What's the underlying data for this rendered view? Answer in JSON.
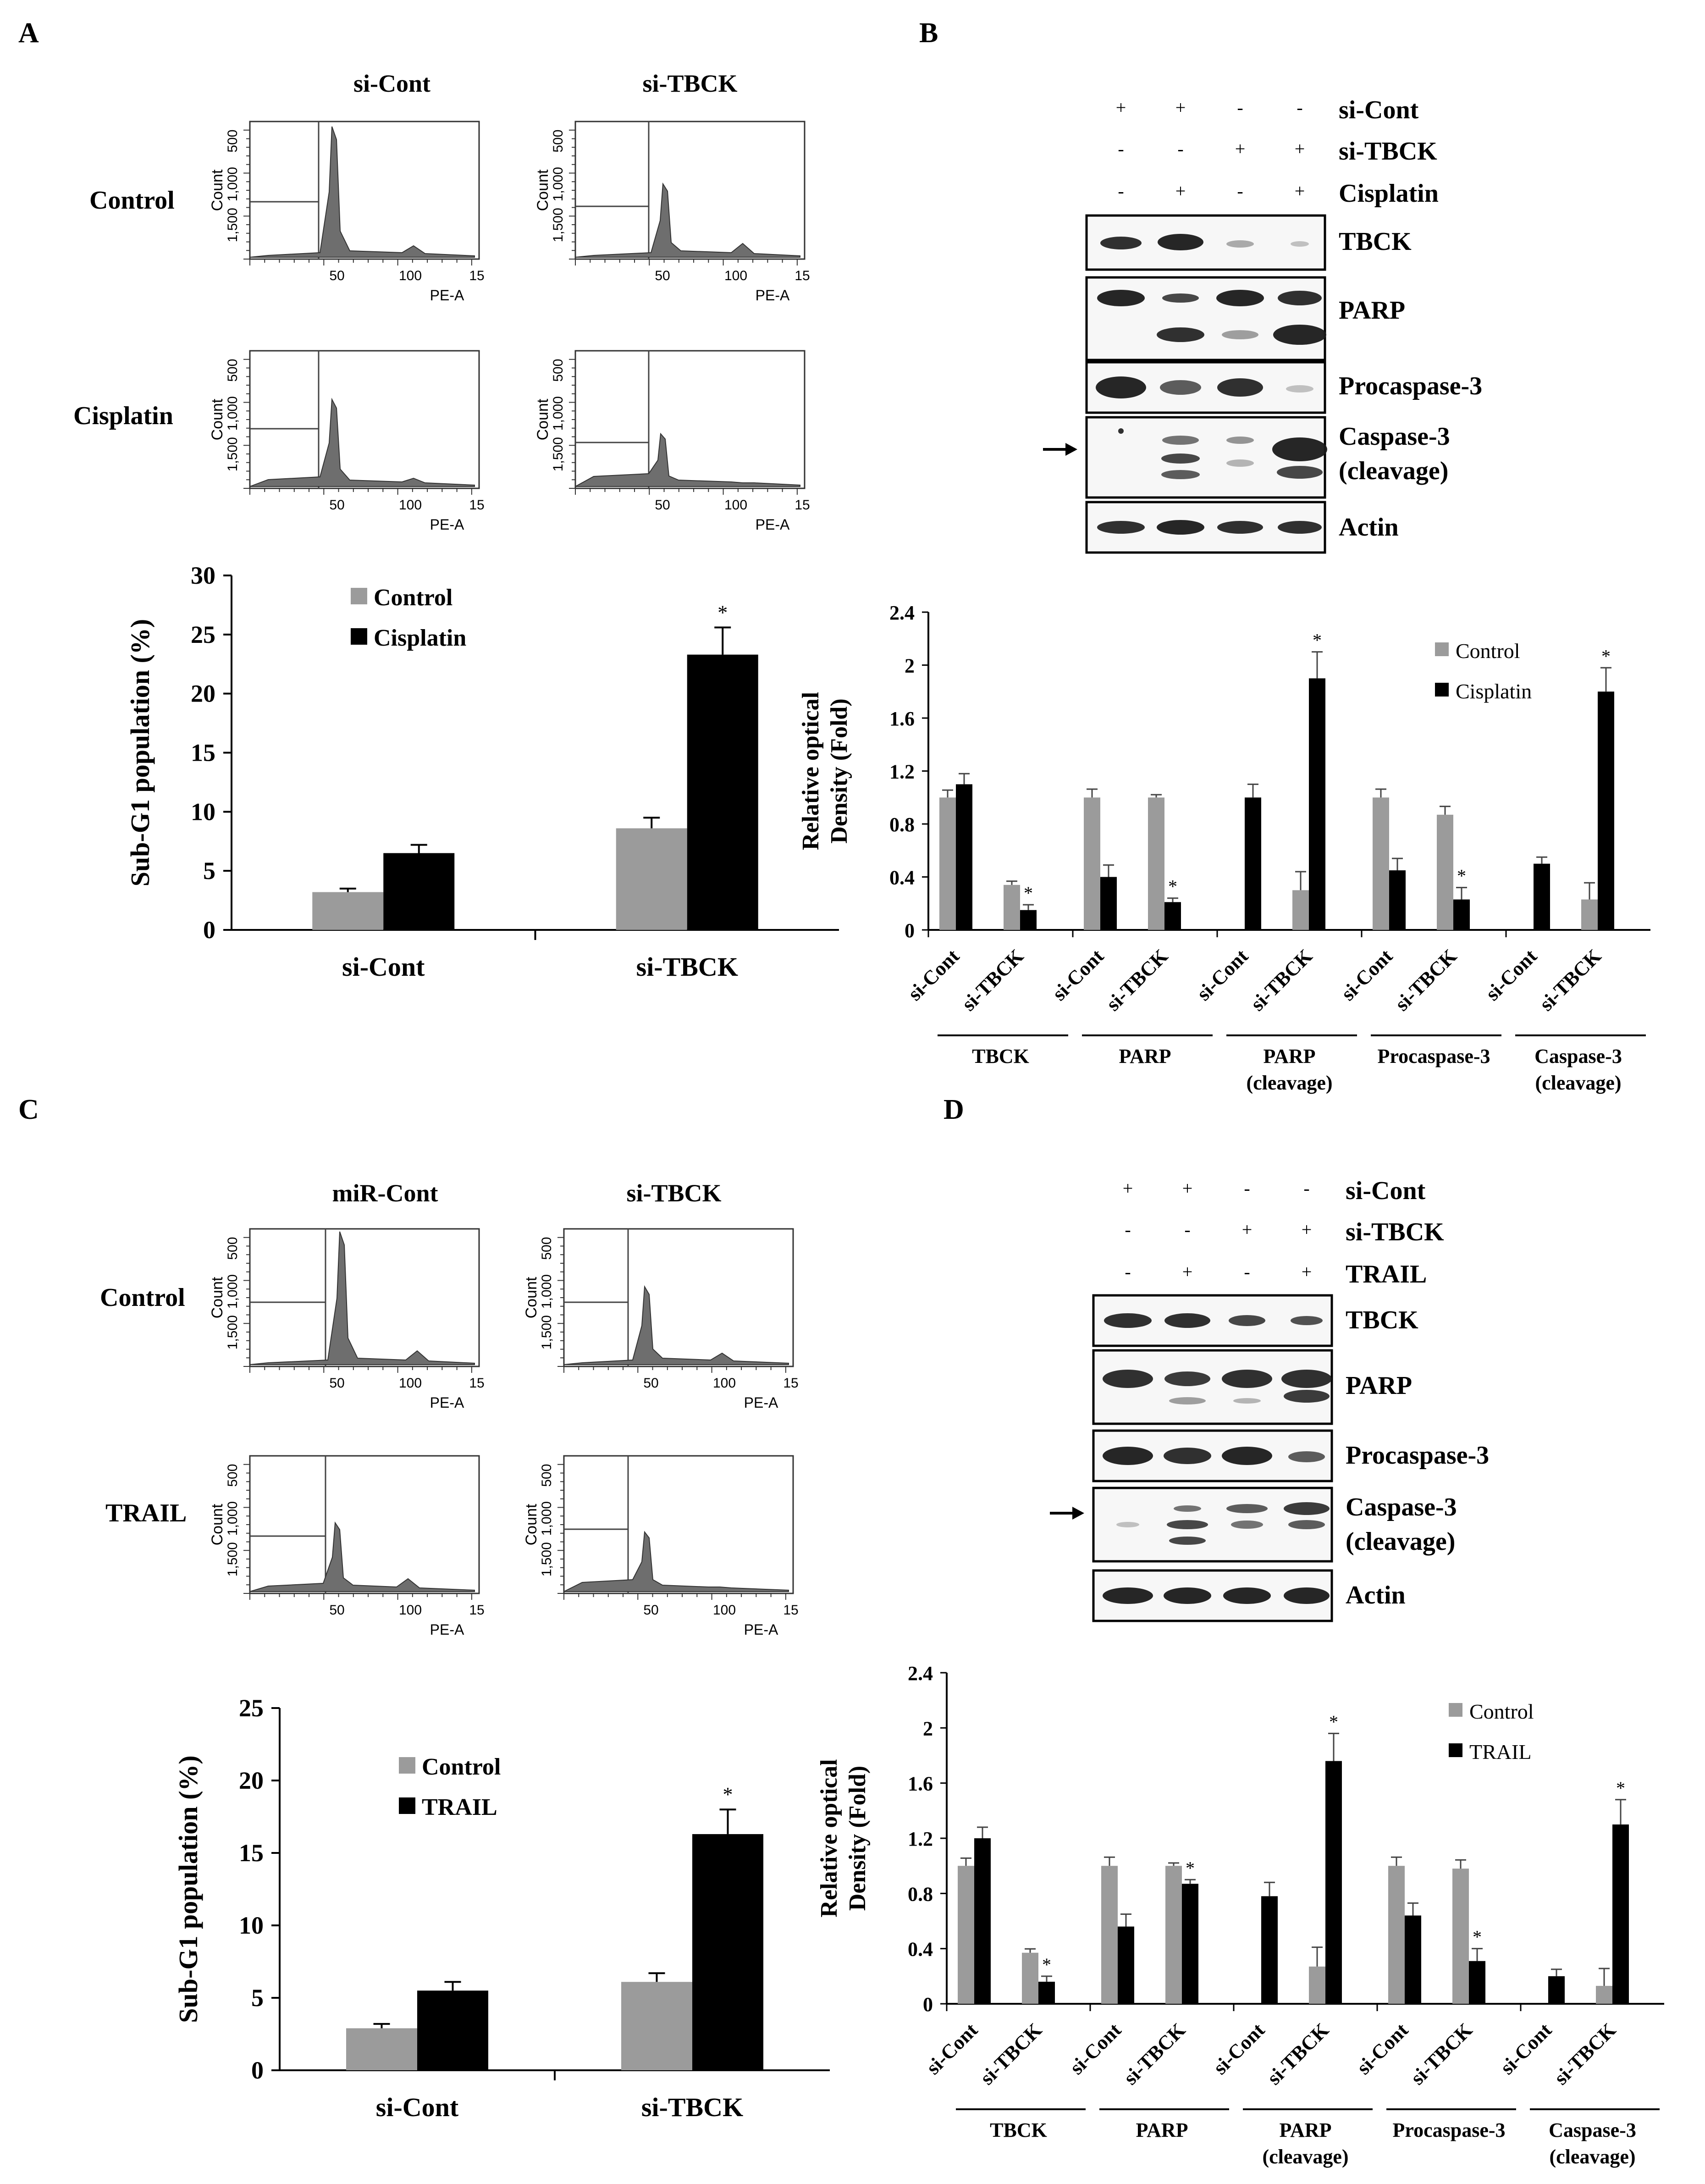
{
  "panels": {
    "A": {
      "letter": "A",
      "col_labels": [
        "si-Cont",
        "si-TBCK"
      ],
      "row_labels": [
        "Control",
        "Cisplatin"
      ]
    },
    "B": {
      "letter": "B",
      "blot_rows": [
        {
          "label": "si-Cont",
          "marks": [
            "+",
            "+",
            "-",
            "-"
          ]
        },
        {
          "label": "si-TBCK",
          "marks": [
            "-",
            "-",
            "+",
            "+"
          ]
        },
        {
          "label": "Cisplatin",
          "marks": [
            "-",
            "+",
            "-",
            "+"
          ]
        }
      ],
      "bands": [
        "TBCK",
        "PARP",
        "Procaspase-3",
        "Caspase-3\n(cleavage)",
        "Actin"
      ]
    },
    "C": {
      "letter": "C",
      "col_labels": [
        "miR-Cont",
        "si-TBCK"
      ],
      "row_labels": [
        "Control",
        "TRAIL"
      ]
    },
    "D": {
      "letter": "D",
      "blot_rows": [
        {
          "label": "si-Cont",
          "marks": [
            "+",
            "+",
            "-",
            "-"
          ]
        },
        {
          "label": "si-TBCK",
          "marks": [
            "-",
            "-",
            "+",
            "+"
          ]
        },
        {
          "label": "TRAIL",
          "marks": [
            "-",
            "+",
            "-",
            "+"
          ]
        }
      ],
      "bands": [
        "TBCK",
        "PARP",
        "Procaspase-3",
        "Caspase-3\n(cleavage)",
        "Actin"
      ]
    }
  },
  "histogram": {
    "ylabel": "Count",
    "xlabel": "PE-A",
    "yticks": [
      "500",
      "1,000",
      "1,500"
    ],
    "xticks": [
      "50",
      "100",
      "15"
    ]
  },
  "colors": {
    "control": "#9b9b9b",
    "treatment": "#000000",
    "histogram_fill": "#6e6e6e"
  },
  "chart_data": [
    {
      "type": "bar",
      "id": "A-bar",
      "categories": [
        "si-Cont",
        "si-TBCK"
      ],
      "series": [
        {
          "name": "Control",
          "values": [
            3.2,
            8.6
          ],
          "errors": [
            0.3,
            0.9
          ]
        },
        {
          "name": "Cisplatin",
          "values": [
            6.5,
            23.3
          ],
          "errors": [
            0.7,
            2.3
          ]
        }
      ],
      "ylabel": "Sub-G1 population (%)",
      "ylim": [
        0,
        30
      ],
      "yticks": [
        0,
        5,
        10,
        15,
        20,
        25,
        30
      ],
      "stars": [
        "*"
      ],
      "legend": "top-left"
    },
    {
      "type": "bar",
      "id": "B-bar",
      "groups": [
        "TBCK",
        "PARP",
        "PARP\n(cleavage)",
        "Procaspase-3",
        "Caspase-3\n(cleavage)"
      ],
      "sublabels": [
        "si-Cont",
        "si-TBCK"
      ],
      "series": [
        {
          "name": "Control",
          "values": [
            1.0,
            0.34,
            1.0,
            1.0,
            0,
            0.3,
            1.0,
            0.87,
            0,
            0.23
          ]
        },
        {
          "name": "Cisplatin",
          "values": [
            1.1,
            0.15,
            0.4,
            0.21,
            1.0,
            1.9,
            0.45,
            0.23,
            0.5,
            1.8
          ]
        }
      ],
      "ylabel": "Relative optical\nDensity (Fold)",
      "ylim": [
        0,
        2.4
      ],
      "yticks": [
        "0",
        "0.4",
        "0.8",
        "1.2",
        "1.6",
        "2",
        "2.4"
      ],
      "stars": [
        "*"
      ],
      "legend": "top-right"
    },
    {
      "type": "bar",
      "id": "C-bar",
      "categories": [
        "si-Cont",
        "si-TBCK"
      ],
      "series": [
        {
          "name": "Control",
          "values": [
            2.9,
            6.1
          ],
          "errors": [
            0.3,
            0.6
          ]
        },
        {
          "name": "TRAIL",
          "values": [
            5.5,
            16.3
          ],
          "errors": [
            0.6,
            1.7
          ]
        }
      ],
      "ylabel": "Sub-G1 population (%)",
      "ylim": [
        0,
        25
      ],
      "yticks": [
        0,
        5,
        10,
        15,
        20,
        25
      ],
      "stars": [
        "*"
      ],
      "legend": "top-left"
    },
    {
      "type": "bar",
      "id": "D-bar",
      "groups": [
        "TBCK",
        "PARP",
        "PARP\n(cleavage)",
        "Procaspase-3",
        "Caspase-3\n(cleavage)"
      ],
      "sublabels": [
        "si-Cont",
        "si-TBCK"
      ],
      "series": [
        {
          "name": "Control",
          "values": [
            1.0,
            0.37,
            1.0,
            1.0,
            0,
            0.27,
            1.0,
            0.98,
            0,
            0.13
          ]
        },
        {
          "name": "TRAIL",
          "values": [
            1.2,
            0.16,
            0.56,
            0.87,
            0.78,
            1.76,
            0.64,
            0.31,
            0.2,
            1.3
          ]
        }
      ],
      "ylabel": "Relative optical\nDensity (Fold)",
      "ylim": [
        0,
        2.4
      ],
      "yticks": [
        "0",
        "0.4",
        "0.8",
        "1.2",
        "1.6",
        "2",
        "2.4"
      ],
      "stars": [
        "*"
      ],
      "legend": "top-right"
    }
  ]
}
